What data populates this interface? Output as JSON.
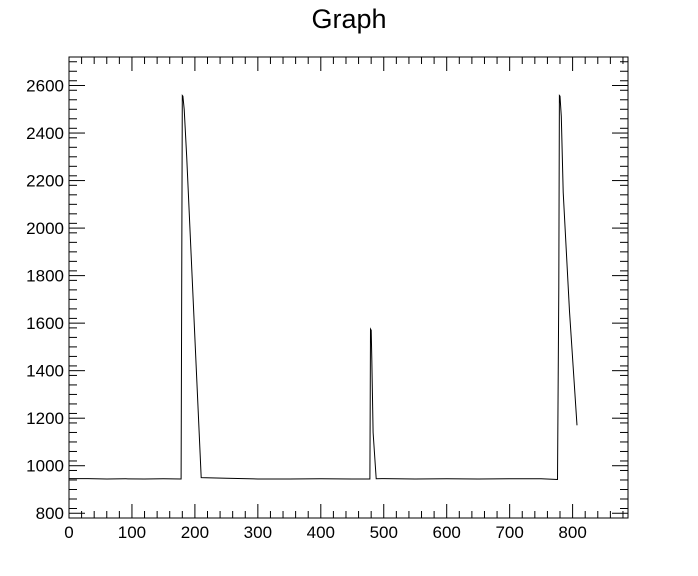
{
  "chart_data": {
    "type": "line",
    "title": "Graph",
    "xlabel": "",
    "ylabel": "",
    "xlim": [
      0,
      888
    ],
    "ylim": [
      780,
      2720
    ],
    "x_ticks": [
      0,
      100,
      200,
      300,
      400,
      500,
      600,
      700,
      800
    ],
    "y_ticks": [
      800,
      1000,
      1200,
      1400,
      1600,
      1800,
      2000,
      2200,
      2400,
      2600
    ],
    "x_tick_labels": [
      "0",
      "100",
      "200",
      "300",
      "400",
      "500",
      "600",
      "700",
      "800"
    ],
    "y_tick_labels": [
      "800",
      "1000",
      "1200",
      "1400",
      "1600",
      "1800",
      "2000",
      "2200",
      "2400",
      "2600"
    ],
    "grid": false,
    "legend": "none",
    "line_color": "#000000",
    "series": [
      {
        "x": [
          0,
          30,
          60,
          90,
          120,
          150,
          178,
          179,
          180,
          181,
          183,
          187,
          210,
          250,
          300,
          350,
          400,
          450,
          478,
          479,
          480,
          481,
          483,
          488,
          500,
          550,
          600,
          650,
          700,
          750,
          776,
          778,
          779,
          780,
          782,
          785,
          795,
          807
        ],
        "y": [
          946,
          946,
          944,
          945,
          944,
          945,
          944,
          1750,
          2558,
          2555,
          2500,
          2300,
          950,
          947,
          944,
          944,
          945,
          944,
          944,
          1575,
          1570,
          1450,
          1140,
          945,
          946,
          944,
          945,
          944,
          945,
          945,
          942,
          1750,
          2558,
          2555,
          2470,
          2150,
          1650,
          1170
        ]
      }
    ]
  }
}
